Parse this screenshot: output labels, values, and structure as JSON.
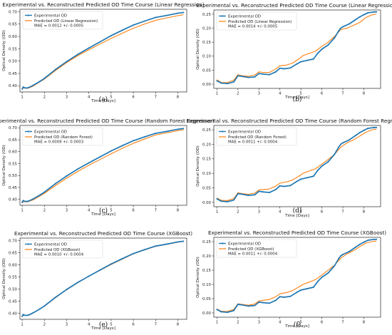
{
  "colors": {
    "experimental": "#1f77b4",
    "predicted": "#ff7f0e"
  },
  "chart_data": [
    {
      "type": "line",
      "title": "Experimental vs. Reconstructed Predicted OD Time Course (Linear Regression)",
      "xlabel": "Time [Days]",
      "ylabel": "Optical Density (OD)",
      "xlim": [
        0.9,
        8.4
      ],
      "ylim": [
        0.375,
        0.71
      ],
      "xticks": [
        1,
        2,
        3,
        4,
        5,
        6,
        7,
        8
      ],
      "yticks": [
        0.4,
        0.45,
        0.5,
        0.55,
        0.6,
        0.65,
        0.7
      ],
      "ytick_labels": [
        "0.40",
        "0.45",
        "0.50",
        "0.55",
        "0.60",
        "0.65",
        "0.70"
      ],
      "legend": [
        "Experimental OD",
        "Predicted OD (Linear Regression)"
      ],
      "annotation": "MAE = 0.0012 +/- 0.0005",
      "legend_position": "upper left",
      "caption": "(a)",
      "series": [
        {
          "name": "Experimental OD",
          "style": "line-dots",
          "x": [
            1.0,
            1.05,
            1.1,
            1.2,
            1.3,
            1.5,
            1.8,
            2.0,
            2.5,
            3.0,
            3.5,
            4.0,
            4.5,
            5.0,
            5.5,
            6.0,
            6.5,
            7.0,
            7.5,
            8.0,
            8.25
          ],
          "y": [
            0.387,
            0.395,
            0.392,
            0.391,
            0.393,
            0.402,
            0.418,
            0.43,
            0.466,
            0.498,
            0.527,
            0.553,
            0.578,
            0.603,
            0.625,
            0.646,
            0.662,
            0.677,
            0.685,
            0.694,
            0.697
          ]
        },
        {
          "name": "Predicted OD (Linear Regression)",
          "style": "line",
          "x": [
            1.0,
            1.1,
            1.2,
            1.3,
            1.5,
            1.8,
            2.0,
            2.5,
            3.0,
            3.5,
            4.0,
            4.5,
            5.0,
            5.5,
            6.0,
            6.5,
            7.0,
            7.5,
            8.0,
            8.25
          ],
          "y": [
            0.39,
            0.391,
            0.389,
            0.391,
            0.399,
            0.416,
            0.427,
            0.462,
            0.494,
            0.522,
            0.546,
            0.569,
            0.592,
            0.613,
            0.633,
            0.65,
            0.665,
            0.675,
            0.684,
            0.688
          ]
        }
      ]
    },
    {
      "type": "line",
      "title": "Experimental vs. Reconstructed Predicted OD Time Course (Linear Regression)",
      "xlabel": "Time [Days]",
      "ylabel": "Optical Density (OD)",
      "xlim": [
        0.85,
        8.8
      ],
      "ylim": [
        -0.015,
        0.265
      ],
      "xticks": [
        1,
        2,
        3,
        4,
        5,
        6,
        7,
        8
      ],
      "yticks": [
        0.0,
        0.05,
        0.1,
        0.15,
        0.2,
        0.25
      ],
      "ytick_labels": [
        "0.00",
        "0.05",
        "0.10",
        "0.15",
        "0.20",
        "0.25"
      ],
      "legend": [
        "Experimental OD",
        "Predicted OD (Linear Regression)"
      ],
      "annotation": "MAE = 0.0014 +/- 0.0005",
      "legend_position": "upper left",
      "caption": "(b)",
      "series": [
        {
          "name": "Experimental OD",
          "style": "line-dots",
          "x": [
            1.0,
            1.2,
            1.5,
            1.8,
            2.0,
            2.2,
            2.5,
            2.8,
            3.0,
            3.2,
            3.5,
            3.8,
            4.0,
            4.2,
            4.5,
            4.8,
            5.0,
            5.3,
            5.6,
            5.8,
            6.0,
            6.3,
            6.6,
            6.8,
            6.9,
            7.0,
            7.3,
            7.6,
            7.8,
            8.0,
            8.2,
            8.5,
            8.6
          ],
          "y": [
            0.012,
            0.004,
            0.002,
            0.008,
            0.03,
            0.028,
            0.024,
            0.026,
            0.038,
            0.036,
            0.034,
            0.044,
            0.057,
            0.055,
            0.058,
            0.072,
            0.08,
            0.085,
            0.09,
            0.11,
            0.125,
            0.14,
            0.165,
            0.19,
            0.2,
            0.205,
            0.215,
            0.23,
            0.24,
            0.248,
            0.255,
            0.258,
            0.258
          ]
        },
        {
          "name": "Predicted OD (Linear Regression)",
          "style": "line",
          "x": [
            1.0,
            1.2,
            1.5,
            1.8,
            2.0,
            2.2,
            2.5,
            2.8,
            3.0,
            3.2,
            3.5,
            3.8,
            4.0,
            4.3,
            4.6,
            4.9,
            5.1,
            5.4,
            5.7,
            6.0,
            6.3,
            6.6,
            6.9,
            7.2,
            7.5,
            7.8,
            8.1,
            8.4,
            8.6
          ],
          "y": [
            0.016,
            0.006,
            0.006,
            0.014,
            0.034,
            0.03,
            0.028,
            0.033,
            0.044,
            0.042,
            0.042,
            0.054,
            0.066,
            0.068,
            0.075,
            0.09,
            0.102,
            0.11,
            0.118,
            0.135,
            0.15,
            0.17,
            0.195,
            0.2,
            0.21,
            0.22,
            0.238,
            0.248,
            0.25
          ]
        }
      ]
    },
    {
      "type": "line",
      "title": "Experimental vs. Reconstructed Predicted OD Time Course (Random Forest Regressor)",
      "xlabel": "Time [Days]",
      "ylabel": "Optical Density (OD)",
      "xlim": [
        0.9,
        8.4
      ],
      "ylim": [
        0.375,
        0.71
      ],
      "xticks": [
        1,
        2,
        3,
        4,
        5,
        6,
        7,
        8
      ],
      "yticks": [
        0.4,
        0.45,
        0.5,
        0.55,
        0.6,
        0.65,
        0.7
      ],
      "ytick_labels": [
        "0.40",
        "0.45",
        "0.50",
        "0.55",
        "0.60",
        "0.65",
        "0.70"
      ],
      "legend": [
        "Experimental OD",
        "Predicted OD (Random Forest)"
      ],
      "annotation": "MAE = 0.0009 +/- 0.0003",
      "legend_position": "upper left",
      "caption": "(c)",
      "series": [
        {
          "name": "Experimental OD",
          "style": "line-dots",
          "x": [
            1.0,
            1.05,
            1.1,
            1.2,
            1.3,
            1.5,
            1.8,
            2.0,
            2.5,
            3.0,
            3.5,
            4.0,
            4.5,
            5.0,
            5.5,
            6.0,
            6.5,
            7.0,
            7.5,
            8.0,
            8.25
          ],
          "y": [
            0.387,
            0.395,
            0.392,
            0.391,
            0.393,
            0.402,
            0.418,
            0.43,
            0.466,
            0.498,
            0.527,
            0.553,
            0.578,
            0.603,
            0.625,
            0.646,
            0.662,
            0.677,
            0.685,
            0.694,
            0.697
          ]
        },
        {
          "name": "Predicted OD (Random Forest)",
          "style": "line",
          "x": [
            1.0,
            1.1,
            1.2,
            1.3,
            1.5,
            1.8,
            2.0,
            2.5,
            3.0,
            3.5,
            4.0,
            4.5,
            5.0,
            5.5,
            6.0,
            6.5,
            7.0,
            7.5,
            8.0,
            8.25
          ],
          "y": [
            0.388,
            0.39,
            0.389,
            0.391,
            0.398,
            0.414,
            0.425,
            0.458,
            0.489,
            0.517,
            0.543,
            0.567,
            0.591,
            0.614,
            0.635,
            0.653,
            0.67,
            0.679,
            0.688,
            0.692
          ]
        }
      ]
    },
    {
      "type": "line",
      "title": "Experimental vs. Reconstructed Predicted OD Time Course (Random Forest Regressor)",
      "xlabel": "Time [Days]",
      "ylabel": "Optical Density (OD)",
      "xlim": [
        0.85,
        8.8
      ],
      "ylim": [
        -0.015,
        0.265
      ],
      "xticks": [
        1,
        2,
        3,
        4,
        5,
        6,
        7,
        8
      ],
      "yticks": [
        0.0,
        0.05,
        0.1,
        0.15,
        0.2,
        0.25
      ],
      "ytick_labels": [
        "0.00",
        "0.05",
        "0.10",
        "0.15",
        "0.20",
        "0.25"
      ],
      "legend": [
        "Experimental OD",
        "Predicted OD (Random Forest)"
      ],
      "annotation": "MAE = 0.0011 +/- 0.0004",
      "legend_position": "upper left",
      "caption": "(d)",
      "series": [
        {
          "name": "Experimental OD",
          "style": "line-dots",
          "x": [
            1.0,
            1.2,
            1.5,
            1.8,
            2.0,
            2.2,
            2.5,
            2.8,
            3.0,
            3.2,
            3.5,
            3.8,
            4.0,
            4.2,
            4.5,
            4.8,
            5.0,
            5.3,
            5.6,
            5.8,
            6.0,
            6.3,
            6.6,
            6.8,
            6.9,
            7.0,
            7.3,
            7.6,
            7.8,
            8.0,
            8.2,
            8.5,
            8.6
          ],
          "y": [
            0.012,
            0.004,
            0.002,
            0.008,
            0.03,
            0.028,
            0.024,
            0.026,
            0.038,
            0.036,
            0.034,
            0.044,
            0.057,
            0.055,
            0.058,
            0.072,
            0.08,
            0.085,
            0.09,
            0.11,
            0.125,
            0.14,
            0.165,
            0.19,
            0.2,
            0.205,
            0.215,
            0.23,
            0.24,
            0.248,
            0.255,
            0.258,
            0.258
          ]
        },
        {
          "name": "Predicted OD (Random Forest)",
          "style": "line",
          "x": [
            1.0,
            1.2,
            1.5,
            1.8,
            2.0,
            2.2,
            2.5,
            2.8,
            3.0,
            3.2,
            3.5,
            3.8,
            4.0,
            4.3,
            4.6,
            4.9,
            5.1,
            5.4,
            5.7,
            6.0,
            6.3,
            6.6,
            6.9,
            7.2,
            7.5,
            7.8,
            8.1,
            8.4,
            8.6
          ],
          "y": [
            0.015,
            0.007,
            0.006,
            0.013,
            0.033,
            0.03,
            0.028,
            0.032,
            0.043,
            0.044,
            0.046,
            0.056,
            0.066,
            0.07,
            0.077,
            0.09,
            0.1,
            0.108,
            0.116,
            0.132,
            0.148,
            0.165,
            0.19,
            0.205,
            0.215,
            0.228,
            0.242,
            0.25,
            0.252
          ]
        }
      ]
    },
    {
      "type": "line",
      "title": "Experimental vs. Reconstructed Predicted OD Time Course (XGBoost)",
      "xlabel": "Time [Days]",
      "ylabel": "Optical Density (OD)",
      "xlim": [
        0.9,
        8.4
      ],
      "ylim": [
        0.375,
        0.71
      ],
      "xticks": [
        1,
        2,
        3,
        4,
        5,
        6,
        7,
        8
      ],
      "yticks": [
        0.4,
        0.45,
        0.5,
        0.55,
        0.6,
        0.65,
        0.7
      ],
      "ytick_labels": [
        "0.40",
        "0.45",
        "0.50",
        "0.55",
        "0.60",
        "0.65",
        "0.70"
      ],
      "legend": [
        "Experimental OD",
        "Predicted OD (XGBoost)"
      ],
      "annotation": "MAE = 0.0010 +/- 0.0004",
      "legend_position": "upper left",
      "caption": "(e)",
      "series": [
        {
          "name": "Experimental OD",
          "style": "line-dots",
          "x": [
            1.0,
            1.05,
            1.1,
            1.2,
            1.3,
            1.5,
            1.8,
            2.0,
            2.5,
            3.0,
            3.5,
            4.0,
            4.5,
            5.0,
            5.5,
            6.0,
            6.5,
            7.0,
            7.5,
            8.0,
            8.25
          ],
          "y": [
            0.387,
            0.395,
            0.392,
            0.391,
            0.393,
            0.402,
            0.418,
            0.43,
            0.466,
            0.498,
            0.527,
            0.553,
            0.578,
            0.603,
            0.625,
            0.646,
            0.662,
            0.677,
            0.685,
            0.694,
            0.697
          ]
        },
        {
          "name": "Predicted OD (XGBoost)",
          "style": "line",
          "x": [
            1.0,
            1.1,
            1.2,
            1.3,
            1.5,
            1.8,
            2.0,
            2.5,
            3.0,
            3.5,
            4.0,
            4.5,
            5.0,
            5.5,
            6.0,
            6.5,
            7.0,
            7.5,
            8.0,
            8.25
          ],
          "y": [
            0.389,
            0.392,
            0.391,
            0.392,
            0.401,
            0.418,
            0.429,
            0.464,
            0.497,
            0.526,
            0.553,
            0.577,
            0.601,
            0.623,
            0.645,
            0.661,
            0.676,
            0.684,
            0.693,
            0.696
          ]
        }
      ]
    },
    {
      "type": "line",
      "title": "Experimental vs. Reconstructed Predicted OD Time Course (XGBoost)",
      "xlabel": "Time [Days]",
      "ylabel": "Optical Density (OD)",
      "xlim": [
        0.85,
        8.8
      ],
      "ylim": [
        -0.015,
        0.265
      ],
      "xticks": [
        1,
        2,
        3,
        4,
        5,
        6,
        7,
        8
      ],
      "yticks": [
        0.0,
        0.05,
        0.1,
        0.15,
        0.2,
        0.25
      ],
      "ytick_labels": [
        "0.00",
        "0.05",
        "0.10",
        "0.15",
        "0.20",
        "0.25"
      ],
      "legend": [
        "Experimental OD",
        "Predicted OD (XGBoost)"
      ],
      "annotation": "MAE = 0.0011 +/- 0.0004",
      "legend_position": "upper left",
      "caption": "(f)",
      "series": [
        {
          "name": "Experimental OD",
          "style": "line-dots",
          "x": [
            1.0,
            1.2,
            1.5,
            1.8,
            2.0,
            2.2,
            2.5,
            2.8,
            3.0,
            3.2,
            3.5,
            3.8,
            4.0,
            4.2,
            4.5,
            4.8,
            5.0,
            5.3,
            5.6,
            5.8,
            6.0,
            6.3,
            6.6,
            6.8,
            6.9,
            7.0,
            7.3,
            7.6,
            7.8,
            8.0,
            8.2,
            8.5,
            8.6
          ],
          "y": [
            0.012,
            0.004,
            0.002,
            0.008,
            0.03,
            0.028,
            0.024,
            0.026,
            0.038,
            0.036,
            0.034,
            0.044,
            0.057,
            0.055,
            0.058,
            0.072,
            0.08,
            0.085,
            0.09,
            0.11,
            0.125,
            0.14,
            0.165,
            0.19,
            0.2,
            0.205,
            0.215,
            0.23,
            0.24,
            0.248,
            0.255,
            0.258,
            0.258
          ]
        },
        {
          "name": "Predicted OD (XGBoost)",
          "style": "line",
          "x": [
            1.0,
            1.2,
            1.5,
            1.8,
            2.0,
            2.2,
            2.5,
            2.8,
            3.0,
            3.2,
            3.5,
            3.8,
            4.0,
            4.3,
            4.6,
            4.9,
            5.1,
            5.4,
            5.7,
            6.0,
            6.3,
            6.6,
            6.9,
            7.2,
            7.5,
            7.8,
            8.1,
            8.4,
            8.6
          ],
          "y": [
            0.014,
            0.006,
            0.005,
            0.012,
            0.032,
            0.03,
            0.027,
            0.031,
            0.042,
            0.044,
            0.047,
            0.057,
            0.067,
            0.071,
            0.078,
            0.091,
            0.1,
            0.108,
            0.117,
            0.133,
            0.15,
            0.167,
            0.192,
            0.207,
            0.218,
            0.232,
            0.245,
            0.25,
            0.252
          ]
        }
      ]
    }
  ]
}
